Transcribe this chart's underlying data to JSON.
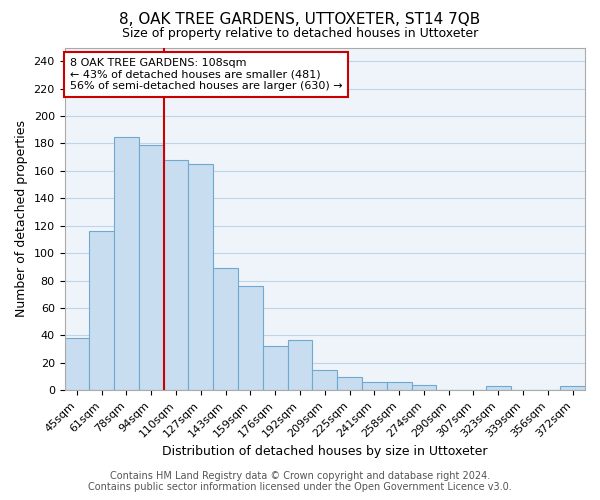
{
  "title": "8, OAK TREE GARDENS, UTTOXETER, ST14 7QB",
  "subtitle": "Size of property relative to detached houses in Uttoxeter",
  "xlabel": "Distribution of detached houses by size in Uttoxeter",
  "ylabel": "Number of detached properties",
  "bar_labels": [
    "45sqm",
    "61sqm",
    "78sqm",
    "94sqm",
    "110sqm",
    "127sqm",
    "143sqm",
    "159sqm",
    "176sqm",
    "192sqm",
    "209sqm",
    "225sqm",
    "241sqm",
    "258sqm",
    "274sqm",
    "290sqm",
    "307sqm",
    "323sqm",
    "339sqm",
    "356sqm",
    "372sqm"
  ],
  "bar_values": [
    38,
    116,
    185,
    179,
    168,
    165,
    89,
    76,
    32,
    37,
    15,
    10,
    6,
    6,
    4,
    0,
    0,
    3,
    0,
    0,
    3
  ],
  "bar_color": "#c8ddef",
  "bar_edge_color": "#6fa8d0",
  "vline_color": "#cc0000",
  "vline_x": 3.5,
  "ylim": [
    0,
    250
  ],
  "yticks": [
    0,
    20,
    40,
    60,
    80,
    100,
    120,
    140,
    160,
    180,
    200,
    220,
    240
  ],
  "annotation_title": "8 OAK TREE GARDENS: 108sqm",
  "annotation_line1": "← 43% of detached houses are smaller (481)",
  "annotation_line2": "56% of semi-detached houses are larger (630) →",
  "annotation_box_color": "#ffffff",
  "annotation_box_edge": "#cc0000",
  "footer_line1": "Contains HM Land Registry data © Crown copyright and database right 2024.",
  "footer_line2": "Contains public sector information licensed under the Open Government Licence v3.0.",
  "bg_color": "#ffffff",
  "plot_bg_color": "#eef4fa",
  "grid_color": "#c0d4e8",
  "title_fontsize": 11,
  "subtitle_fontsize": 9,
  "axis_label_fontsize": 9,
  "tick_fontsize": 8,
  "annotation_fontsize": 8,
  "footer_fontsize": 7
}
